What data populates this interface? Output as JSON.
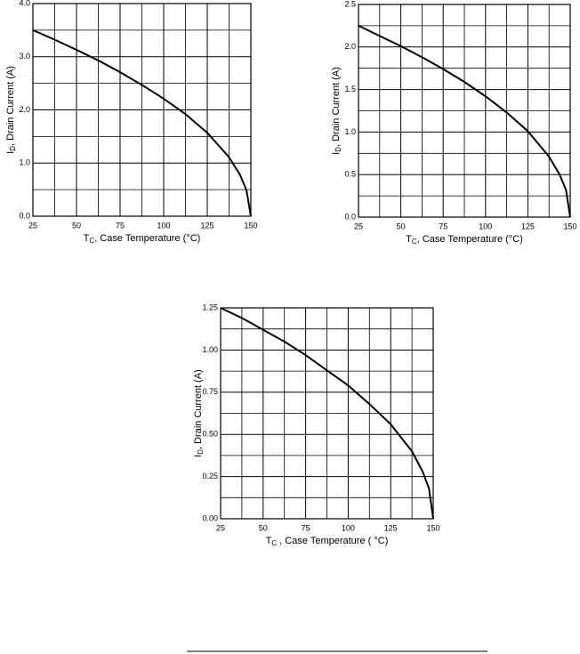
{
  "chart_data": [
    {
      "type": "line",
      "x": [
        25,
        37.5,
        50,
        62.5,
        75,
        87.5,
        100,
        112.5,
        125,
        137.5,
        143.75,
        147.5,
        150
      ],
      "values": [
        3.5,
        3.32,
        3.13,
        2.93,
        2.71,
        2.47,
        2.21,
        1.92,
        1.57,
        1.11,
        0.78,
        0.49,
        0
      ],
      "color": "#000000",
      "xlim": [
        25,
        150
      ],
      "ylim": [
        0,
        4
      ],
      "xticks": [
        25,
        50,
        75,
        100,
        125,
        150
      ],
      "yticks": [
        {
          "value": 0,
          "label": "0.0"
        },
        {
          "value": 1,
          "label": "1.0"
        },
        {
          "value": 2,
          "label": "2.0"
        },
        {
          "value": 3,
          "label": "3.0"
        },
        {
          "value": 4,
          "label": "4.0"
        }
      ],
      "grid": true,
      "xlabel": {
        "symbol": "T",
        "subscript": "C",
        "text": ", Case Temperature  (°C)"
      },
      "ylabel": {
        "symbol": "I",
        "subscript": "D",
        "text": ", Drain Current (A)"
      }
    },
    {
      "type": "line",
      "x": [
        25,
        37.5,
        50,
        62.5,
        75,
        87.5,
        100,
        112.5,
        125,
        137.5,
        143.75,
        147.5,
        150
      ],
      "values": [
        2.25,
        2.13,
        2.01,
        1.88,
        1.74,
        1.59,
        1.42,
        1.23,
        1.01,
        0.71,
        0.5,
        0.32,
        0
      ],
      "color": "#000000",
      "xlim": [
        25,
        150
      ],
      "ylim": [
        0,
        2.5
      ],
      "xticks": [
        25,
        50,
        75,
        100,
        125,
        150
      ],
      "yticks": [
        {
          "value": 0,
          "label": "0.0"
        },
        0.5,
        {
          "value": 1,
          "label": "1.0"
        },
        1.5,
        {
          "value": 2,
          "label": "2.0"
        },
        2.5
      ],
      "grid": true,
      "xlabel": {
        "symbol": "T",
        "subscript": "C",
        "text": ", Case Temperature  (°C)"
      },
      "ylabel": {
        "symbol": "I",
        "subscript": "D",
        "text": ", Drain Current (A)"
      }
    },
    {
      "type": "line",
      "x": [
        25,
        37.5,
        50,
        62.5,
        75,
        87.5,
        100,
        112.5,
        125,
        137.5,
        143.75,
        147.5,
        150
      ],
      "values": [
        1.25,
        1.19,
        1.12,
        1.05,
        0.97,
        0.88,
        0.79,
        0.68,
        0.56,
        0.4,
        0.28,
        0.18,
        0
      ],
      "color": "#000000",
      "xlim": [
        25,
        150
      ],
      "ylim": [
        0,
        1.25
      ],
      "xticks": [
        25,
        50,
        75,
        100,
        125,
        150
      ],
      "yticks": [
        {
          "value": 0,
          "label": "0.00"
        },
        0.25,
        {
          "value": 0.5,
          "label": "0.50"
        },
        0.75,
        {
          "value": 1,
          "label": "1.00"
        },
        1.25
      ],
      "grid": true,
      "xlabel": {
        "symbol": "T",
        "subscript": "C",
        "text": " , Case Temperature  ( °C)"
      },
      "ylabel": {
        "symbol": "I",
        "subscript": "D",
        "text": ", Drain Current (A)"
      }
    }
  ]
}
